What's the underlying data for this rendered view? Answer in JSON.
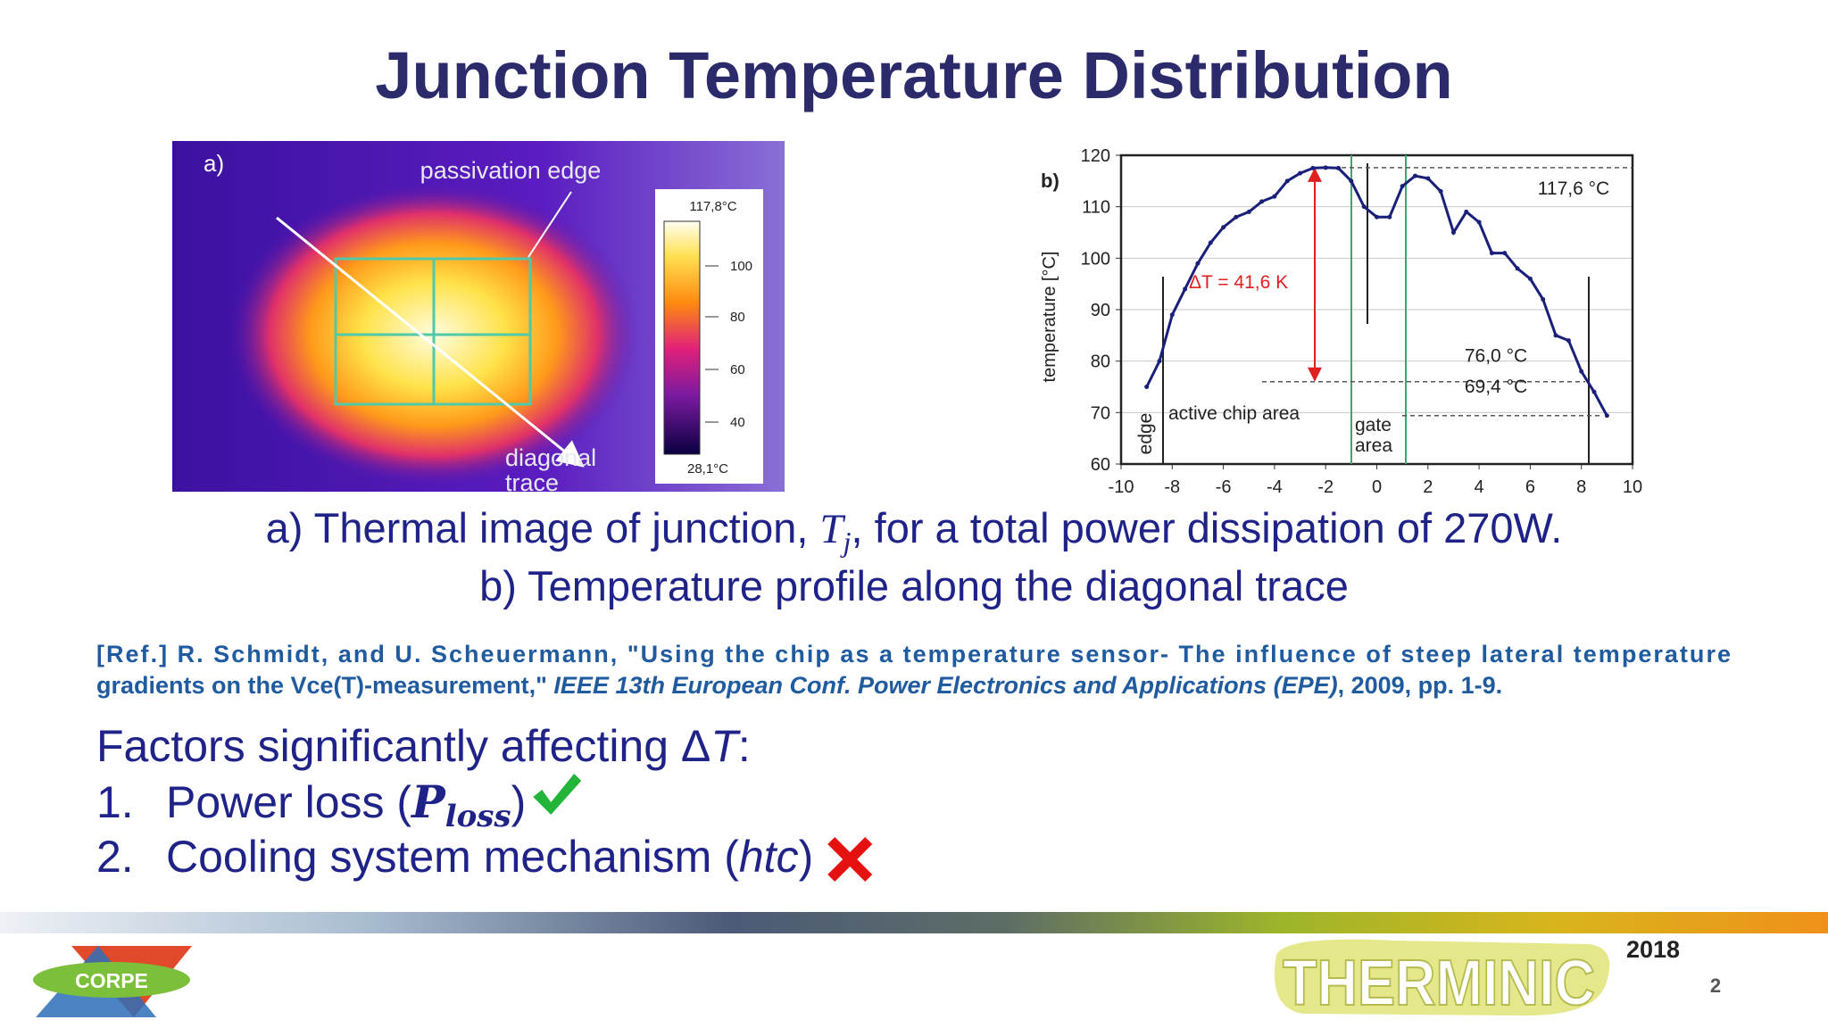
{
  "title": "Junction Temperature Distribution",
  "figure_a": {
    "label": "a)",
    "passivation_label": "passivation edge",
    "trace_label": [
      "diagonal",
      "trace"
    ],
    "colorbar": {
      "max": "117,8°C",
      "ticks": [
        "100",
        "80",
        "60",
        "40"
      ],
      "min": "28,1°C"
    }
  },
  "chart_data": {
    "type": "line",
    "label": "b)",
    "y_label": "temperature [°C]",
    "x": [
      -9,
      -8.5,
      -8,
      -7.5,
      -7,
      -6.5,
      -6,
      -5.5,
      -5,
      -4.5,
      -4,
      -3.5,
      -3,
      -2.5,
      -2,
      -1.5,
      -1,
      -0.5,
      0,
      0.5,
      1,
      1.5,
      2,
      2.5,
      3,
      3.5,
      4,
      4.5,
      5,
      5.5,
      6,
      6.5,
      7,
      7.5,
      8,
      8.5,
      9
    ],
    "values": [
      75,
      80,
      89,
      94,
      99,
      103,
      106,
      108,
      109,
      111,
      112,
      115,
      116.5,
      117.5,
      117.6,
      117.5,
      115,
      110,
      108,
      108,
      114,
      116,
      115.5,
      113,
      105,
      109,
      107,
      101,
      101,
      98,
      96,
      92,
      85,
      84,
      78,
      74,
      69.4
    ],
    "color": "#1a1f7a",
    "xlim": [
      -10,
      10
    ],
    "ylim": [
      60,
      120
    ],
    "xticks": [
      -10,
      -8,
      -6,
      -4,
      -2,
      0,
      2,
      4,
      6,
      8,
      10
    ],
    "yticks": [
      60,
      70,
      80,
      90,
      100,
      110,
      120
    ],
    "grid": true,
    "annotations": [
      {
        "value": 117.6,
        "label": "117,6 °C"
      },
      {
        "value": 76.0,
        "label": "76,0 °C"
      },
      {
        "value": 69.4,
        "label": "69,4 °C"
      }
    ],
    "delta_label": "ΔT = 41,6 K",
    "region_labels": {
      "active": "active chip area",
      "gate": [
        "gate",
        "area"
      ],
      "edge": "edge"
    }
  },
  "caption": {
    "line1": [
      "a) Thermal image of junction, ",
      "T",
      "j",
      ", for a total power dissipation of 270W."
    ],
    "line2": "b) Temperature profile along the diagonal trace"
  },
  "reference": {
    "line1": "[Ref.] R. Schmidt, and U. Scheuermann, \"Using the chip as a temperature sensor- The influence of steep lateral temperature",
    "line2": [
      "gradients on the Vce(T)-measurement,\" ",
      "IEEE 13th European Conf. Power Electronics and Applications (EPE)",
      ", 2009, pp. 1-9."
    ]
  },
  "factors": {
    "heading": [
      "Factors significantly affecting Δ",
      "T",
      ":"
    ],
    "items": [
      {
        "number": "1.",
        "text": [
          "Power loss (",
          "P",
          "loss",
          ")"
        ]
      },
      {
        "number": "2.",
        "text": [
          "Cooling system mechanism (",
          "htc",
          ")"
        ]
      }
    ]
  },
  "footer": {
    "logo_left": "CORPE",
    "logo_right": "THERMINIC",
    "year": "2018",
    "page": "2"
  }
}
